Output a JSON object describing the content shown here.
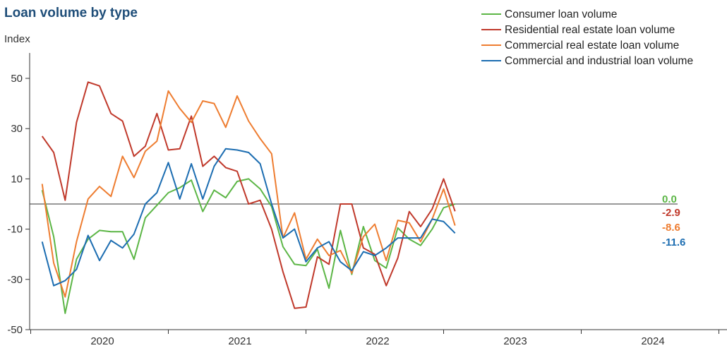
{
  "chart_data": {
    "type": "line",
    "title": "Loan volume by type",
    "ylabel": "Index",
    "xlabel": "",
    "ylim": [
      -50,
      60
    ],
    "yticks": [
      -50,
      -30,
      -10,
      10,
      30,
      50
    ],
    "xlim": [
      2019.5,
      2024.5
    ],
    "xticks": [
      2020,
      2021,
      2022,
      2023,
      2024
    ],
    "xtick_labels": [
      "2020",
      "2021",
      "2022",
      "2023",
      "2024"
    ],
    "grid": false,
    "zero_line": true,
    "legend": "top-right",
    "x": [
      2019.583,
      2019.667,
      2019.75,
      2019.833,
      2019.917,
      2020.0,
      2020.083,
      2020.167,
      2020.25,
      2020.333,
      2020.417,
      2020.5,
      2020.583,
      2020.667,
      2020.75,
      2020.833,
      2020.917,
      2021.0,
      2021.083,
      2021.167,
      2021.25,
      2021.333,
      2021.417,
      2021.5,
      2021.583,
      2021.667,
      2021.75,
      2021.833,
      2021.917,
      2022.0,
      2022.083,
      2022.167,
      2022.25,
      2022.333,
      2022.417,
      2022.5,
      2022.583,
      2022.667,
      2022.75,
      2022.833,
      2022.917,
      2023.0,
      2023.083,
      2023.167,
      2023.25,
      2023.333,
      2023.417,
      2023.5,
      2023.583,
      2023.667,
      2023.75,
      2023.833,
      2023.917,
      2024.0,
      2024.083
    ],
    "series": [
      {
        "name": "Consumer loan volume",
        "color": "#5cb646",
        "values": [
          5.5,
          -13,
          -43.5,
          -22,
          -14,
          -10.5,
          -11,
          -11,
          -22,
          -5.5,
          -0.5,
          4.5,
          6.5,
          9.5,
          -3,
          5.5,
          2.5,
          9,
          10,
          6,
          -1,
          -17,
          -24,
          -24.5,
          -18,
          -33.5,
          -10.5,
          -28,
          -9,
          -22.5,
          -25.5,
          -9.5,
          -14,
          -16.5,
          -10,
          -1.5,
          0.0,
          null,
          null,
          null,
          null,
          null,
          null,
          null,
          null,
          null,
          null,
          null,
          null,
          null,
          null,
          null,
          null,
          null,
          null
        ],
        "end_label": "0.0"
      },
      {
        "name": "Residential real estate loan volume",
        "color": "#c0392b",
        "values": [
          27,
          20.5,
          1.5,
          32.5,
          48.5,
          47,
          36,
          33,
          19,
          23,
          36,
          21.5,
          22,
          35,
          15,
          19,
          14.5,
          13,
          0,
          1.5,
          -10,
          -27,
          -41.5,
          -41,
          -21,
          -24,
          0,
          0,
          -17.5,
          -20,
          -32.5,
          -21.5,
          -3,
          -9,
          -2,
          10,
          -2.9,
          null,
          null,
          null,
          null,
          null,
          null,
          null,
          null,
          null,
          null,
          null,
          null,
          null,
          null,
          null,
          null,
          null,
          null
        ],
        "end_label": "-2.9"
      },
      {
        "name": "Commercial real estate loan volume",
        "color": "#ee7d31",
        "values": [
          8,
          -23.5,
          -37,
          -15,
          2,
          7,
          3,
          19,
          10.5,
          21,
          25,
          45,
          38,
          32.5,
          41,
          40,
          30.5,
          43,
          33,
          26,
          20,
          -13.5,
          -3.5,
          -22,
          -14,
          -20.5,
          -18.5,
          -27.5,
          -13,
          -8,
          -22.5,
          -6.5,
          -7.5,
          -15,
          -6,
          6,
          -8.6,
          null,
          null,
          null,
          null,
          null,
          null,
          null,
          null,
          null,
          null,
          null,
          null,
          null,
          null,
          null,
          null,
          null,
          null
        ],
        "end_label": "-8.6"
      },
      {
        "name": "Commercial and industrial loan volume",
        "color": "#1c6db1",
        "values": [
          -15,
          -32.5,
          -30.5,
          -26,
          -12.5,
          -22.5,
          -14.5,
          -17.5,
          -12,
          0,
          4.5,
          16.5,
          2,
          16,
          2,
          15,
          22,
          21.5,
          20.5,
          16,
          0,
          -13.5,
          -10,
          -23,
          -17.5,
          -15,
          -23,
          -26.5,
          -19,
          -20.5,
          -17.5,
          -13.5,
          -13.5,
          -13.5,
          -6,
          -7,
          -11.6,
          null,
          null,
          null,
          null,
          null,
          null,
          null,
          null,
          null,
          null,
          null,
          null,
          null,
          null,
          null,
          null,
          null,
          null
        ],
        "end_label": "-11.6"
      }
    ]
  }
}
